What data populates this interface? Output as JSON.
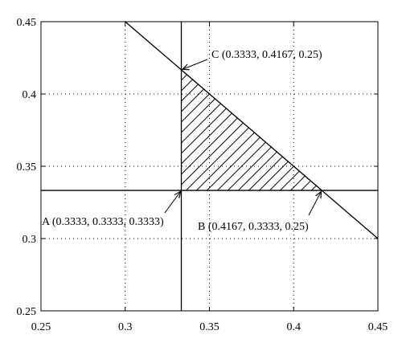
{
  "chart_data": {
    "type": "line",
    "xlim": [
      0.25,
      0.45
    ],
    "ylim": [
      0.25,
      0.45
    ],
    "x_ticks": [
      0.25,
      0.3,
      0.35,
      0.4,
      0.45
    ],
    "y_ticks": [
      0.25,
      0.3,
      0.35,
      0.4,
      0.45
    ],
    "x_tick_labels": [
      "0.25",
      "0.3",
      "0.35",
      "0.4",
      "0.45"
    ],
    "y_tick_labels": [
      "0.25",
      "0.3",
      "0.35",
      "0.4",
      "0.45"
    ],
    "grid": "dotted",
    "title": "",
    "xlabel": "",
    "ylabel": "",
    "lines": [
      {
        "kind": "vertical",
        "x": 0.3333
      },
      {
        "kind": "horizontal",
        "y": 0.3333
      },
      {
        "kind": "segment",
        "x": [
          0.3,
          0.45
        ],
        "y": [
          0.45,
          0.3
        ]
      }
    ],
    "shaded_region": {
      "pattern": "diagonal-hatch",
      "vertices": [
        [
          0.3333,
          0.3333
        ],
        [
          0.4167,
          0.3333
        ],
        [
          0.3333,
          0.4167
        ]
      ]
    },
    "annotations": [
      {
        "label": "C (0.3333, 0.4167, 0.25)",
        "point": [
          0.3333,
          0.4167
        ]
      },
      {
        "label": "A (0.3333, 0.3333, 0.3333)",
        "point": [
          0.3333,
          0.3333
        ]
      },
      {
        "label": "B (0.4167, 0.3333, 0.25)",
        "point": [
          0.4167,
          0.3333
        ]
      }
    ]
  }
}
